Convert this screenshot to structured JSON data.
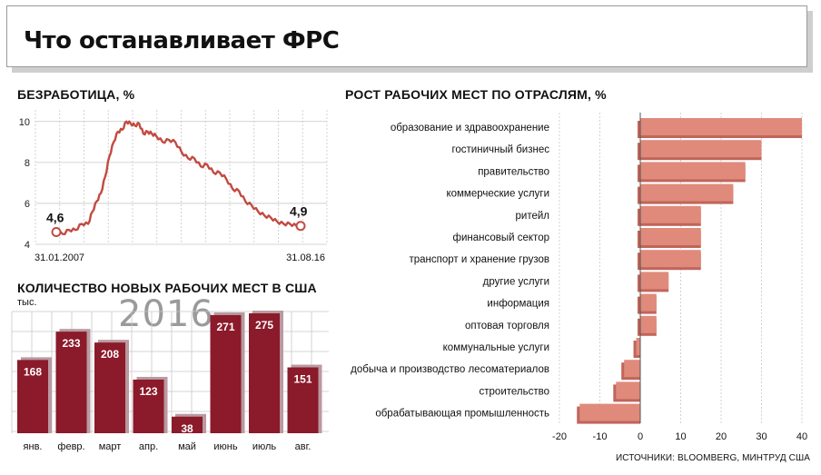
{
  "title": "Что останавливает ФРС",
  "sources": "ИСТОЧНИКИ: BLOOMBERG, МИНТРУД США",
  "colors": {
    "accent": "#c24a40",
    "bar_dark": "#8b1a2a",
    "bar_shadow": "#b99aa0",
    "sector_bar": "#e08a7c",
    "sector_shadow": "#c0655a",
    "grid": "#c8c8c8",
    "title_shadow": "#cfcfcf"
  },
  "chart_data": [
    {
      "id": "unemployment",
      "type": "line",
      "title": "БЕЗРАБОТИЦА, %",
      "yticks": [
        4,
        6,
        8,
        10
      ],
      "ylim": [
        4,
        10.3
      ],
      "x_start_label": "31.01.2007",
      "x_end_label": "31.08.16",
      "start_value_label": "4,6",
      "end_value_label": "4,9",
      "grid": true,
      "points": [
        [
          "2007-01",
          4.6
        ],
        [
          "2007-04",
          4.5
        ],
        [
          "2007-07",
          4.7
        ],
        [
          "2007-10",
          4.7
        ],
        [
          "2008-01",
          5.0
        ],
        [
          "2008-04",
          5.0
        ],
        [
          "2008-06",
          5.6
        ],
        [
          "2008-08",
          6.1
        ],
        [
          "2008-10",
          6.5
        ],
        [
          "2008-12",
          7.3
        ],
        [
          "2009-02",
          8.3
        ],
        [
          "2009-04",
          9.0
        ],
        [
          "2009-06",
          9.5
        ],
        [
          "2009-08",
          9.6
        ],
        [
          "2009-10",
          10.0
        ],
        [
          "2009-12",
          9.9
        ],
        [
          "2010-02",
          9.8
        ],
        [
          "2010-04",
          9.9
        ],
        [
          "2010-06",
          9.4
        ],
        [
          "2010-08",
          9.5
        ],
        [
          "2010-10",
          9.4
        ],
        [
          "2010-12",
          9.3
        ],
        [
          "2011-03",
          9.0
        ],
        [
          "2011-06",
          9.1
        ],
        [
          "2011-09",
          9.0
        ],
        [
          "2011-12",
          8.5
        ],
        [
          "2012-03",
          8.2
        ],
        [
          "2012-06",
          8.2
        ],
        [
          "2012-09",
          7.8
        ],
        [
          "2012-12",
          7.9
        ],
        [
          "2013-03",
          7.5
        ],
        [
          "2013-06",
          7.5
        ],
        [
          "2013-09",
          7.2
        ],
        [
          "2013-12",
          6.7
        ],
        [
          "2014-03",
          6.6
        ],
        [
          "2014-06",
          6.1
        ],
        [
          "2014-09",
          5.9
        ],
        [
          "2014-12",
          5.6
        ],
        [
          "2015-03",
          5.4
        ],
        [
          "2015-06",
          5.3
        ],
        [
          "2015-09",
          5.1
        ],
        [
          "2015-12",
          5.0
        ],
        [
          "2016-03",
          5.0
        ],
        [
          "2016-06",
          4.9
        ],
        [
          "2016-08",
          4.9
        ]
      ]
    },
    {
      "id": "new_jobs",
      "type": "bar",
      "title": "КОЛИЧЕСТВО НОВЫХ РАБОЧИХ МЕСТ В США",
      "unit": "тыс.",
      "year": "2016",
      "grid": true,
      "categories": [
        "янв.",
        "февр.",
        "март",
        "апр.",
        "май",
        "июнь",
        "июль",
        "авг."
      ],
      "values": [
        168,
        233,
        208,
        123,
        38,
        271,
        275,
        151
      ]
    },
    {
      "id": "sectors",
      "type": "bar",
      "orientation": "horizontal",
      "title": "РОСТ РАБОЧИХ МЕСТ ПО ОТРАСЛЯМ, %",
      "xlim": [
        -20,
        40
      ],
      "xticks": [
        -20,
        -10,
        0,
        10,
        20,
        30,
        40
      ],
      "xtick_labels": [
        "-20",
        "-10",
        "0",
        "10",
        "20",
        "30",
        "40"
      ],
      "grid": true,
      "categories": [
        "образование и здравоохранение",
        "гостиничный бизнес",
        "правительство",
        "коммерческие услуги",
        "ритейл",
        "финансовый сектор",
        "транспорт и хранение грузов",
        "другие услуги",
        "информация",
        "оптовая торговля",
        "коммунальные услуги",
        "добыча и производство лесоматериалов",
        "строительство",
        "обрабатывающая промышленность"
      ],
      "values": [
        40,
        30,
        26,
        23,
        15,
        15,
        15,
        7,
        4,
        4,
        -1,
        -4,
        -6,
        -15
      ]
    }
  ]
}
